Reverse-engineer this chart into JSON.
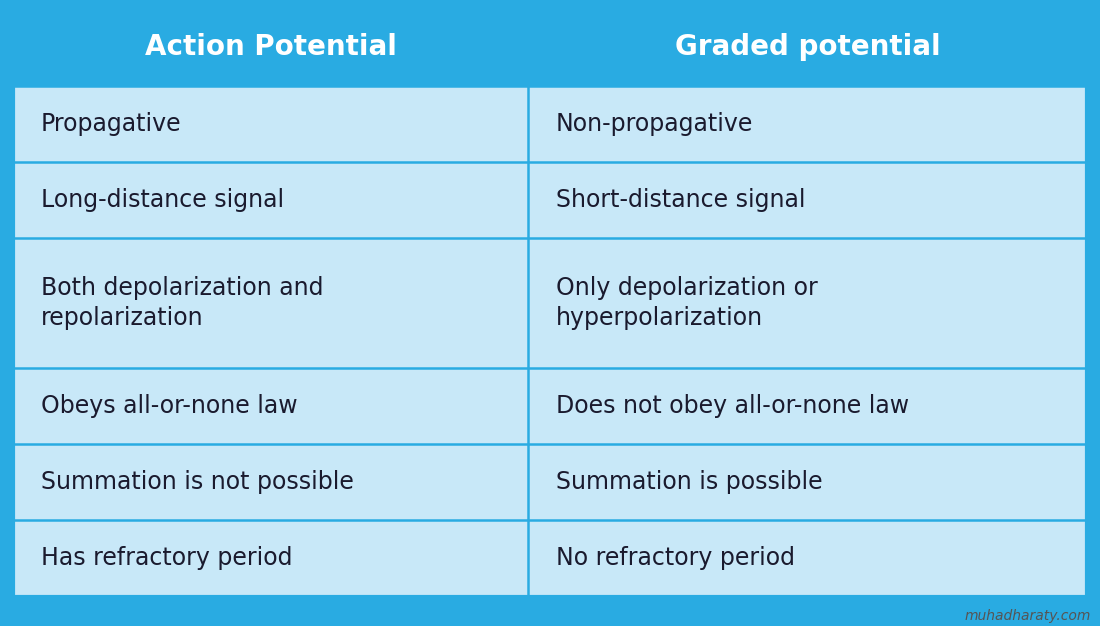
{
  "header": [
    "Action Potential",
    "Graded potential"
  ],
  "rows": [
    [
      "Propagative",
      "Non-propagative"
    ],
    [
      "Long-distance signal",
      "Short-distance signal"
    ],
    [
      "Both depolarization and\nrepolarization",
      "Only depolarization or\nhyperpolarization"
    ],
    [
      "Obeys all-or-none law",
      "Does not obey all-or-none law"
    ],
    [
      "Summation is not possible",
      "Summation is possible"
    ],
    [
      "Has refractory period",
      "No refractory period"
    ]
  ],
  "header_bg_color": "#29ABE2",
  "header_text_color": "#FFFFFF",
  "row_bg_color": "#C8E8F8",
  "text_color": "#1A1A2E",
  "border_color": "#29ABE2",
  "outer_border_color": "#29ABE2",
  "fig_bg_color": "#29ABE2",
  "watermark": "muhadharaty.com",
  "watermark_color": "#555555",
  "header_fontsize": 20,
  "cell_fontsize": 17,
  "watermark_fontsize": 10,
  "col_split": 0.48
}
